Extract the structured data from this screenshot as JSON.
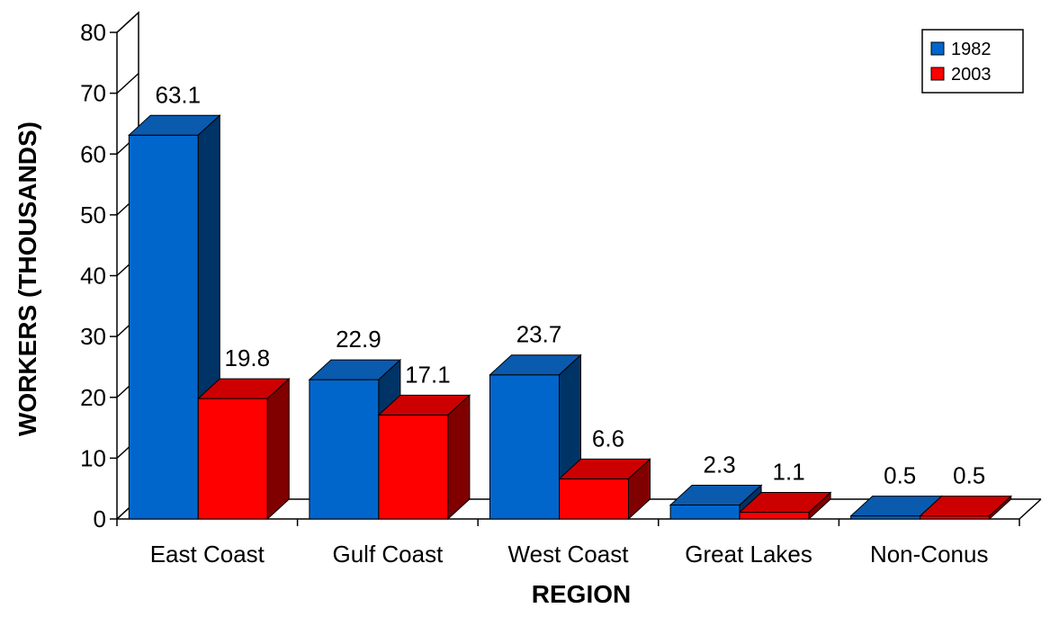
{
  "chart_data": {
    "type": "bar",
    "categories": [
      "East Coast",
      "Gulf Coast",
      "West Coast",
      "Great Lakes",
      "Non-Conus"
    ],
    "series": [
      {
        "name": "1982",
        "values": [
          63.1,
          22.9,
          23.7,
          2.3,
          0.5
        ],
        "labels": [
          "63.1",
          "22.9",
          "23.7",
          "2.3",
          "0.5"
        ],
        "color": "#0066CC",
        "top_color": "#0A5AAE",
        "side_color": "#003366"
      },
      {
        "name": "2003",
        "values": [
          19.8,
          17.1,
          6.6,
          1.1,
          0.5
        ],
        "labels": [
          "19.8",
          "17.1",
          "6.6",
          "1.1",
          "0.5"
        ],
        "color": "#FF0000",
        "top_color": "#CC0000",
        "side_color": "#800000"
      }
    ],
    "xlabel": "REGION",
    "ylabel": "WORKERS (THOUSANDS)",
    "ylim": [
      0,
      80
    ],
    "yticks": [
      "0",
      "10",
      "20",
      "30",
      "40",
      "50",
      "60",
      "70",
      "80"
    ],
    "legend_position": "top-right",
    "style": "3d-clustered-bar",
    "grid": false
  }
}
